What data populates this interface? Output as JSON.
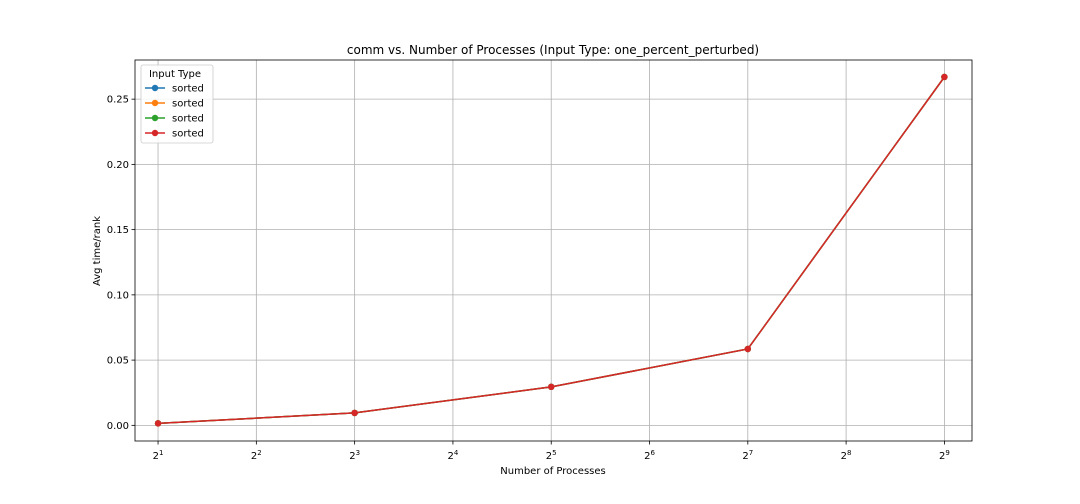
{
  "chart_data": {
    "type": "line",
    "title": "comm vs. Number of Processes (Input Type: one_percent_perturbed)",
    "xlabel": "Number of Processes",
    "ylabel": "Avg time/rank",
    "x_scale": "log2",
    "x_ticks": [
      2,
      4,
      8,
      16,
      32,
      64,
      128,
      256,
      512
    ],
    "x_tick_labels": [
      {
        "base": "2",
        "exp": "1"
      },
      {
        "base": "2",
        "exp": "2"
      },
      {
        "base": "2",
        "exp": "3"
      },
      {
        "base": "2",
        "exp": "4"
      },
      {
        "base": "2",
        "exp": "5"
      },
      {
        "base": "2",
        "exp": "6"
      },
      {
        "base": "2",
        "exp": "7"
      },
      {
        "base": "2",
        "exp": "8"
      },
      {
        "base": "2",
        "exp": "9"
      }
    ],
    "xlim": [
      1.7,
      622
    ],
    "ylim": [
      -0.012,
      0.28
    ],
    "y_ticks": [
      0.0,
      0.05,
      0.1,
      0.15,
      0.2,
      0.25
    ],
    "y_tick_labels": [
      "0.00",
      "0.05",
      "0.10",
      "0.15",
      "0.20",
      "0.25"
    ],
    "grid": true,
    "legend": {
      "title": "Input Type",
      "placement": "top-left"
    },
    "x": [
      2,
      8,
      32,
      128,
      512
    ],
    "series": [
      {
        "name": "sorted",
        "color": "#1f77b4",
        "values": [
          0.0015,
          0.0095,
          0.0295,
          0.0585,
          0.267
        ]
      },
      {
        "name": "sorted",
        "color": "#ff7f0e",
        "values": [
          0.0015,
          0.0095,
          0.0295,
          0.0585,
          0.267
        ]
      },
      {
        "name": "sorted",
        "color": "#2ca02c",
        "values": [
          0.0015,
          0.0095,
          0.0295,
          0.0585,
          0.267
        ]
      },
      {
        "name": "sorted",
        "color": "#d62728",
        "values": [
          0.0015,
          0.0095,
          0.0295,
          0.0585,
          0.267
        ]
      }
    ]
  }
}
